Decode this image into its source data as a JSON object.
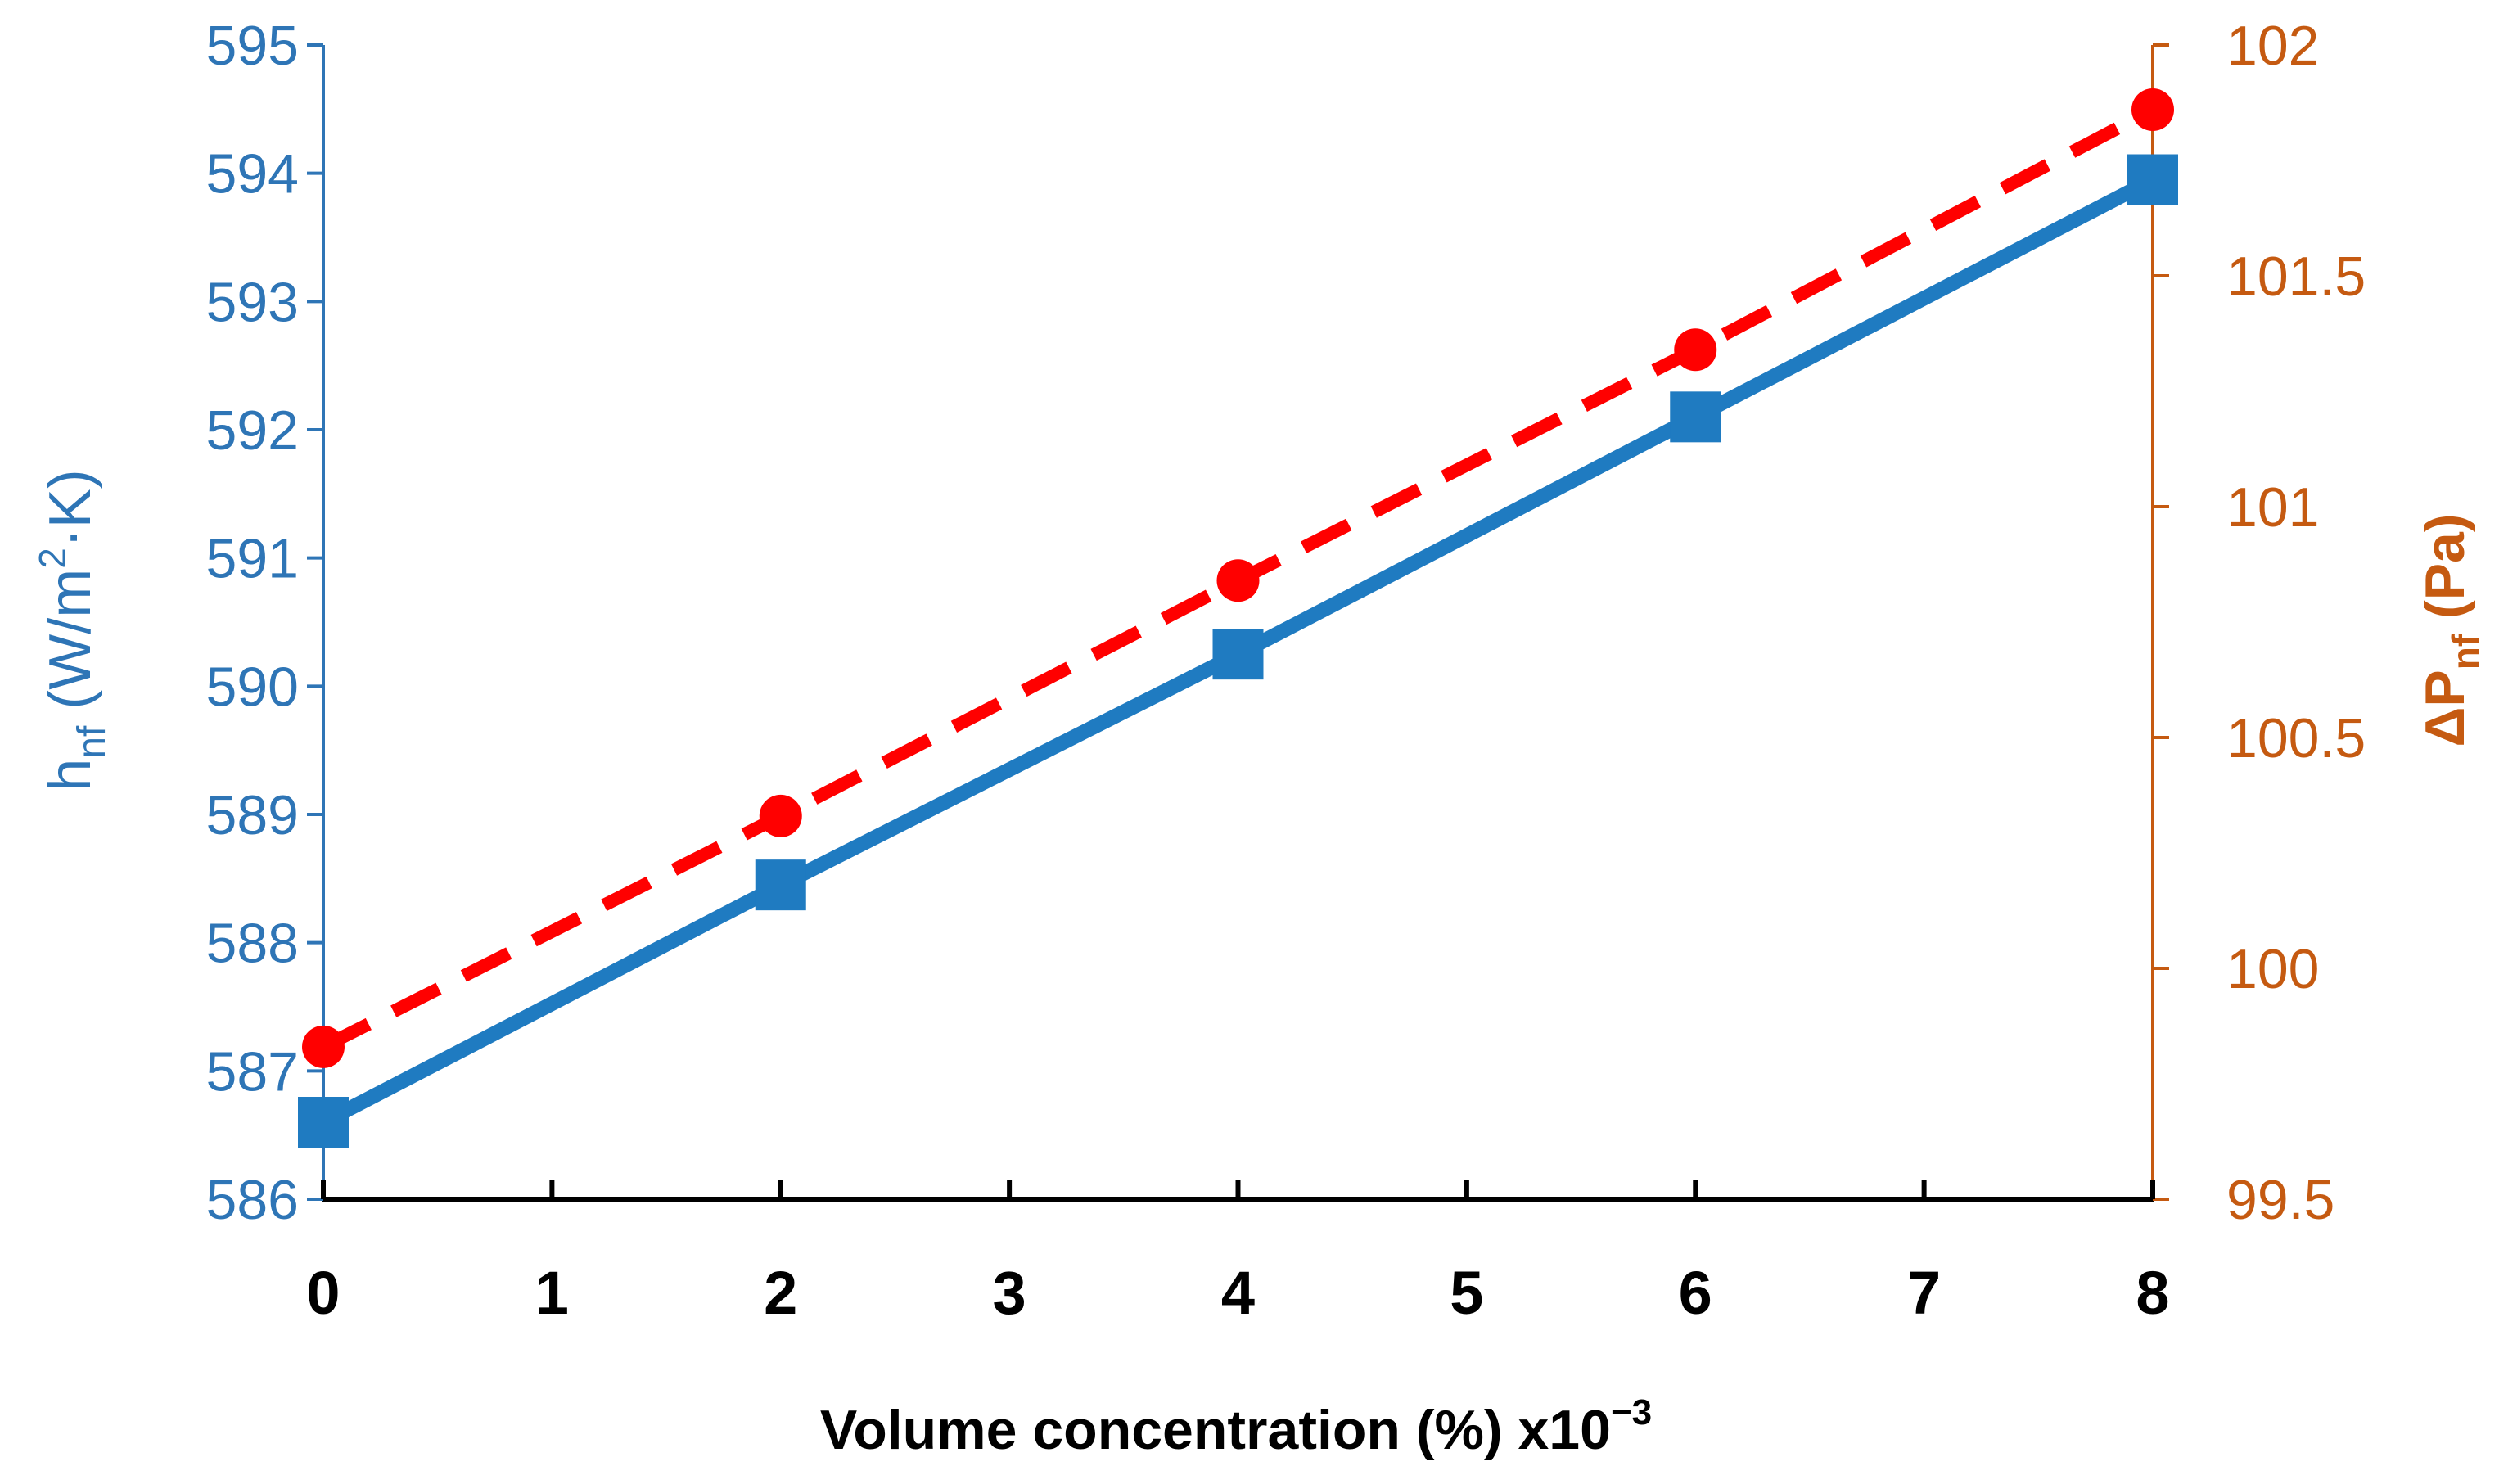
{
  "chart_data": {
    "type": "line",
    "title": "",
    "x": [
      0,
      2,
      4,
      6,
      8
    ],
    "xlabel": "Volume concentration (%) x10",
    "xlabel_exponent": "−3",
    "xlim": [
      0,
      8
    ],
    "x_ticks": [
      "0",
      "1",
      "2",
      "3",
      "4",
      "5",
      "6",
      "7",
      "8"
    ],
    "y_left": {
      "label_main": "h",
      "label_sub": "nf",
      "label_unit_pre": " (W/m",
      "label_unit_sup": "2",
      "label_unit_post": "·K)",
      "ylim": [
        586,
        595
      ],
      "ticks": [
        "586",
        "587",
        "588",
        "589",
        "590",
        "591",
        "592",
        "593",
        "594",
        "595"
      ],
      "color": "#2e75b6"
    },
    "y_right": {
      "label_main": "ΔP",
      "label_sub": "nf",
      "label_unit": " (Pa)",
      "ylim": [
        99.5,
        102
      ],
      "ticks": [
        "99.5",
        "100",
        "100.5",
        "101",
        "101.5",
        "102"
      ],
      "color": "#c55a11"
    },
    "series": [
      {
        "name": "h_nf",
        "axis": "left",
        "values": [
          586.6,
          588.45,
          590.25,
          592.1,
          593.95
        ],
        "color": "#1f7bc1",
        "line": "solid",
        "marker": "square"
      },
      {
        "name": "ΔP_nf",
        "axis": "right",
        "values": [
          99.83,
          100.33,
          100.84,
          101.34,
          101.86
        ],
        "color": "#ff0000",
        "line": "dashed",
        "marker": "circle"
      }
    ]
  }
}
